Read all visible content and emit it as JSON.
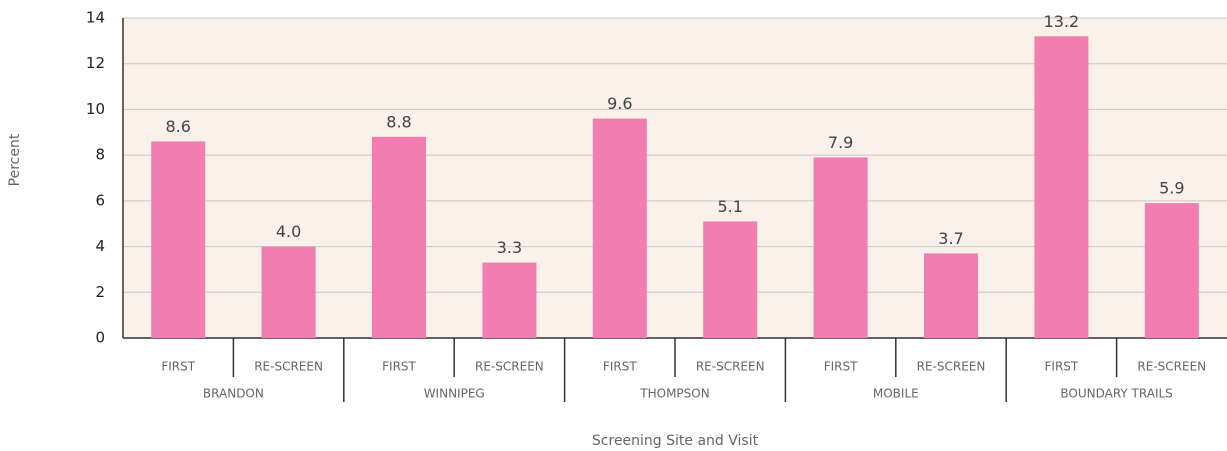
{
  "chart_data": {
    "type": "bar",
    "x_label": "Screening Site and Visit",
    "y_label": "Percent",
    "categories": [
      "FIRST",
      "RE-SCREEN",
      "FIRST",
      "RE-SCREEN",
      "FIRST",
      "RE-SCREEN",
      "FIRST",
      "RE-SCREEN",
      "FIRST",
      "RE-SCREEN"
    ],
    "groups": [
      "BRANDON",
      "WINNIPEG",
      "THOMPSON",
      "MOBILE",
      "BOUNDARY TRAILS"
    ],
    "values": [
      8.6,
      4.0,
      8.8,
      3.3,
      9.6,
      5.1,
      7.9,
      3.7,
      13.2,
      5.9
    ],
    "value_labels": [
      "8.6",
      "4.0",
      "8.8",
      "3.3",
      "9.6",
      "5.1",
      "7.9",
      "3.7",
      "13.2",
      "5.9"
    ],
    "color": "#f27db0",
    "ylim": [
      0,
      14
    ],
    "yticks": [
      0,
      2,
      4,
      6,
      8,
      10,
      12,
      14
    ],
    "grid": true
  }
}
